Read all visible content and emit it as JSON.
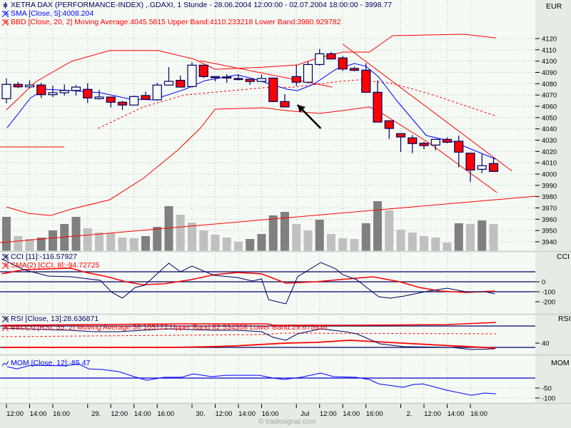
{
  "header": {
    "title": "XETRA DAX (PERFORMANCE-INDEX) ,.GDAXI, 1 Stunde - 28.06.2004 12:00:00 - 02.07.2004 18:00:00 - 3998.77",
    "sma_label": "SMA [Close, 5]:4008.204",
    "bbd_label": "BBD [Close, 20, 2] Moving Average:4045.5815 Upper Band:4110.233218 Lower Band:3980.929782",
    "currency": "EUR"
  },
  "panes": {
    "cci": {
      "name": "CCI",
      "label": "CCI [11]:-116.57927",
      "sma_label": "SMA(2) [CCI, 8]:-94.72725"
    },
    "rsi": {
      "name": "RSI",
      "label": "RSI [Close, 13]:28.636871",
      "bbd_label": "BBD(3) [RSI, 55, 2] Moving Average:56.105122 Upper Band:82.534308 Lower Band:29.675936"
    },
    "mom": {
      "name": "MOM",
      "label": "MOM [Close, 12]:-85.47"
    }
  },
  "footer": {
    "watermark": "© tradesignal.com"
  },
  "colors": {
    "up_fill": "#f5faf5",
    "down_fill": "#ff0000",
    "outline": "#000060",
    "sma": "#0000ff",
    "band": "#ff0000",
    "volume_dark": "#808080",
    "volume_light": "#c0c0c0",
    "background": "#f5faf5"
  },
  "chart_data": {
    "type": "candlestick",
    "title": "XETRA DAX (PERFORMANCE-INDEX) ,.GDAXI, 1 Stunde",
    "price_axis": {
      "min": 3940,
      "max": 4120,
      "step": 10,
      "unit": "EUR",
      "labels": [
        "4120",
        "4110",
        "4100",
        "4090",
        "4080",
        "4070",
        "4060",
        "4050",
        "4040",
        "4030",
        "4020",
        "4010",
        "4000",
        "3990",
        "3980",
        "3970",
        "3960",
        "3950",
        "3940"
      ]
    },
    "x_labels": [
      {
        "idx": 0,
        "label": "12:00"
      },
      {
        "idx": 2,
        "label": "14:00"
      },
      {
        "idx": 4,
        "label": "16:00"
      },
      {
        "idx": 7,
        "label": "29."
      },
      {
        "idx": 9,
        "label": "12:00"
      },
      {
        "idx": 11,
        "label": "14:00"
      },
      {
        "idx": 13,
        "label": "16:00"
      },
      {
        "idx": 16,
        "label": "30."
      },
      {
        "idx": 18,
        "label": "12:00"
      },
      {
        "idx": 20,
        "label": "14:00"
      },
      {
        "idx": 22,
        "label": "16:00"
      },
      {
        "idx": 25,
        "label": "Jul"
      },
      {
        "idx": 27,
        "label": "12:00"
      },
      {
        "idx": 29,
        "label": "14:00"
      },
      {
        "idx": 31,
        "label": "16:00"
      },
      {
        "idx": 34,
        "label": "2."
      },
      {
        "idx": 36,
        "label": "12:00"
      },
      {
        "idx": 38,
        "label": "14:00"
      },
      {
        "idx": 40,
        "label": "16:00"
      }
    ],
    "candles_ohlc": [
      [
        4066.7,
        4084.6,
        4062.5,
        4079.4
      ],
      [
        4079.4,
        4081.5,
        4076.2,
        4077.2
      ],
      [
        4077.2,
        4083,
        4076,
        4078.8
      ],
      [
        4078.8,
        4080.8,
        4067.4,
        4070.3
      ],
      [
        4070.3,
        4078.3,
        4068.2,
        4072
      ],
      [
        4072,
        4079.4,
        4069.5,
        4074
      ],
      [
        4074,
        4078.8,
        4069.5,
        4077
      ],
      [
        4075,
        4080.4,
        4063,
        4067.4
      ],
      [
        4066.7,
        4074.5,
        4066,
        4068.2
      ],
      [
        4068.2,
        4068.5,
        4059,
        4063.6
      ],
      [
        4063.6,
        4064.8,
        4056.8,
        4061.1
      ],
      [
        4061.1,
        4069.5,
        4061,
        4068.6
      ],
      [
        4069.5,
        4073,
        4065.7,
        4066.1
      ],
      [
        4065.7,
        4080.8,
        4065,
        4078.8
      ],
      [
        4078.8,
        4094.7,
        4078.3,
        4082.1
      ],
      [
        4083,
        4087.2,
        4076.6,
        4077
      ],
      [
        4077.5,
        4099,
        4076.5,
        4096.4
      ],
      [
        4096.4,
        4096.8,
        4085,
        4086.3
      ],
      [
        4086.3,
        4086.3,
        4082,
        4085.5
      ],
      [
        4086,
        4088.4,
        4080.8,
        4085
      ],
      [
        4084.6,
        4088.4,
        4082.8,
        4083.8
      ],
      [
        4084,
        4084.2,
        4079,
        4082
      ],
      [
        4082,
        4088,
        4082,
        4084.6
      ],
      [
        4085,
        4085,
        4063.6,
        4064.2
      ],
      [
        4064.2,
        4070.7,
        4059.4,
        4059.4
      ],
      [
        4086.3,
        4096.8,
        4077.9,
        4081.3
      ],
      [
        4081.3,
        4099.4,
        4080.2,
        4097
      ],
      [
        4097,
        4110.7,
        4096,
        4106.5
      ],
      [
        4106.5,
        4108.2,
        4101.5,
        4101.9
      ],
      [
        4102.8,
        4104.5,
        4091.4,
        4093
      ],
      [
        4093.5,
        4095,
        4091,
        4091.8
      ],
      [
        4092,
        4098,
        4072.4,
        4072.4
      ],
      [
        4072.4,
        4083,
        4046,
        4046
      ],
      [
        4047.2,
        4047.2,
        4031,
        4040.4
      ],
      [
        4035.8,
        4035.8,
        4019.4,
        4032.8
      ],
      [
        4032,
        4034.5,
        4018.5,
        4027
      ],
      [
        4027.3,
        4028.6,
        4021.9,
        4025.2
      ],
      [
        4025.7,
        4030.7,
        4021,
        4030.7
      ],
      [
        4030.7,
        4032.4,
        4027.3,
        4028.2
      ],
      [
        4029,
        4034.1,
        4005.9,
        4019.4
      ],
      [
        4018.5,
        4018.5,
        3993.2,
        4003.6
      ],
      [
        4004.2,
        4017.7,
        4000.8,
        4007.4
      ],
      [
        4009.3,
        4013.9,
        4002.3,
        4002.3
      ]
    ],
    "volume_relative": [
      48,
      21,
      17,
      19,
      29,
      38,
      48,
      32,
      26,
      25,
      19,
      18,
      21,
      34,
      63,
      51,
      40,
      29,
      23,
      19,
      13,
      17,
      24,
      50,
      55,
      38,
      29,
      44,
      24,
      18,
      17,
      39,
      70,
      57,
      30,
      26,
      21,
      19,
      12,
      39,
      38,
      43,
      38
    ],
    "volume_dark": [
      1,
      0,
      0,
      1,
      1,
      1,
      1,
      0,
      0,
      0,
      0,
      0,
      1,
      1,
      1,
      0,
      0,
      0,
      0,
      0,
      0,
      1,
      1,
      1,
      1,
      0,
      0,
      1,
      0,
      0,
      0,
      1,
      1,
      0,
      0,
      0,
      0,
      0,
      0,
      1,
      0,
      1,
      0
    ],
    "sma": [
      [
        0.06,
        4041
      ],
      [
        2.1,
        4067.6
      ],
      [
        3.3,
        4075.1
      ],
      [
        5.6,
        4073.9
      ],
      [
        8.1,
        4072
      ],
      [
        10.7,
        4066.3
      ],
      [
        12.6,
        4065.7
      ],
      [
        15.4,
        4075.1
      ],
      [
        17.1,
        4082.7
      ],
      [
        19.9,
        4087.8
      ],
      [
        21.2,
        4084.6
      ],
      [
        24.2,
        4075.1
      ],
      [
        25.1,
        4073.9
      ],
      [
        26.5,
        4079.6
      ],
      [
        28.4,
        4092.8
      ],
      [
        30,
        4097.9
      ],
      [
        31,
        4095.4
      ],
      [
        32.1,
        4085.9
      ],
      [
        33.7,
        4064.4
      ],
      [
        36.2,
        4034.1
      ],
      [
        38.6,
        4028.4
      ],
      [
        40.2,
        4021.5
      ],
      [
        42.2,
        4013.2
      ]
    ],
    "bb_upper": [
      [
        0,
        4056.8
      ],
      [
        2.5,
        4081.5
      ],
      [
        5.6,
        4099.8
      ],
      [
        8.9,
        4109.3
      ],
      [
        13.1,
        4109.3
      ],
      [
        16.2,
        4101.7
      ],
      [
        18,
        4092.8
      ],
      [
        22.2,
        4094.7
      ],
      [
        25.1,
        4096.6
      ],
      [
        26.7,
        4102.3
      ],
      [
        29,
        4108
      ],
      [
        31.3,
        4108
      ],
      [
        33.3,
        4122.5
      ],
      [
        39.4,
        4123.8
      ],
      [
        42.2,
        4120.6
      ]
    ],
    "bb_mid": [
      [
        7.9,
        4040.4
      ],
      [
        11.8,
        4059.4
      ],
      [
        15.4,
        4070.1
      ],
      [
        22.2,
        4076.4
      ],
      [
        24.9,
        4077
      ],
      [
        28.2,
        4081.5
      ],
      [
        30.4,
        4083.4
      ],
      [
        33.3,
        4080.2
      ],
      [
        36.6,
        4070.7
      ],
      [
        42.1,
        4051.8
      ]
    ],
    "bb_lower": [
      [
        0,
        3970.9
      ],
      [
        1.9,
        3965.2
      ],
      [
        3.8,
        3963.3
      ],
      [
        5.6,
        3969
      ],
      [
        8.9,
        3977.2
      ],
      [
        11.8,
        3996.2
      ],
      [
        14.8,
        4021.5
      ],
      [
        16.7,
        4040.4
      ],
      [
        18,
        4057.5
      ],
      [
        22.2,
        4058.7
      ],
      [
        24.1,
        4056.2
      ],
      [
        27,
        4053.7
      ],
      [
        29,
        4056.2
      ],
      [
        31.3,
        4059.4
      ],
      [
        32.5,
        4053
      ],
      [
        36.4,
        4027.8
      ],
      [
        42.3,
        3983.6
      ]
    ],
    "trendlines": [
      [
        [
          16.7,
          4100.4
        ],
        [
          28.1,
          4077
        ]
      ],
      [
        [
          -0.55,
          3939.3
        ],
        [
          45.7,
          3980.4
        ]
      ],
      [
        [
          -0.55,
          4024
        ],
        [
          5,
          4024
        ]
      ],
      [
        [
          29,
          4115
        ],
        [
          43.6,
          4002.5
        ]
      ]
    ],
    "arrow": [
      [
        27.1,
        4040.4
      ],
      [
        25.1,
        4061.3
      ]
    ],
    "cci": {
      "levels": [
        100,
        0,
        -100
      ],
      "tick_labels": [
        "0",
        "-100",
        "-200"
      ],
      "cci": [
        [
          -0.4,
          229
        ],
        [
          1.5,
          121
        ],
        [
          3.6,
          57
        ],
        [
          5.6,
          50
        ],
        [
          8.1,
          14
        ],
        [
          9.1,
          -107
        ],
        [
          10,
          -164
        ],
        [
          11.1,
          -57
        ],
        [
          11.9,
          -36
        ],
        [
          14,
          186
        ],
        [
          15,
          100
        ],
        [
          16,
          157
        ],
        [
          17.9,
          64
        ],
        [
          19.9,
          43
        ],
        [
          21.2,
          7
        ],
        [
          22,
          29
        ],
        [
          22.6,
          -179
        ],
        [
          24.1,
          -221
        ],
        [
          25.1,
          50
        ],
        [
          27.1,
          193
        ],
        [
          28.4,
          129
        ],
        [
          29,
          71
        ],
        [
          30.2,
          21
        ],
        [
          32.1,
          -150
        ],
        [
          33.1,
          -164
        ],
        [
          34.3,
          -143
        ],
        [
          36.4,
          -93
        ],
        [
          38,
          -64
        ],
        [
          39.6,
          -100
        ],
        [
          41.3,
          -100
        ],
        [
          42.1,
          -121
        ]
      ],
      "sma": [
        [
          -0.4,
          79
        ],
        [
          1.5,
          121
        ],
        [
          3.6,
          129
        ],
        [
          5.6,
          136
        ],
        [
          6.6,
          100
        ],
        [
          8.7,
          50
        ],
        [
          10.3,
          0
        ],
        [
          11.7,
          -29
        ],
        [
          13.6,
          -21
        ],
        [
          15.9,
          21
        ],
        [
          17.9,
          71
        ],
        [
          19.9,
          93
        ],
        [
          22,
          79
        ],
        [
          24.1,
          -14
        ],
        [
          26.7,
          0
        ],
        [
          28.6,
          21
        ],
        [
          31.6,
          50
        ],
        [
          33.9,
          0
        ],
        [
          35.6,
          -57
        ],
        [
          37.4,
          -93
        ],
        [
          39.6,
          -107
        ],
        [
          42.1,
          -93
        ]
      ]
    },
    "rsi": {
      "levels": [
        80,
        30
      ],
      "tick_labels": [
        "40"
      ],
      "rsi": [
        [
          -0.4,
          75
        ],
        [
          5.4,
          70
        ],
        [
          7.6,
          66.7
        ],
        [
          9.7,
          66.7
        ],
        [
          11.8,
          70
        ],
        [
          13.8,
          73.3
        ],
        [
          15.9,
          71.7
        ],
        [
          17.9,
          70
        ],
        [
          19.9,
          70
        ],
        [
          22,
          66.7
        ],
        [
          23,
          53.3
        ],
        [
          24.1,
          46.7
        ],
        [
          25.1,
          61.7
        ],
        [
          27.1,
          73.3
        ],
        [
          29.2,
          66.7
        ],
        [
          30.2,
          61.7
        ],
        [
          32.2,
          38.3
        ],
        [
          34.3,
          31.7
        ],
        [
          38.4,
          30
        ],
        [
          40.1,
          25
        ],
        [
          42.1,
          26.7
        ]
      ],
      "upper": [
        [
          -0.4,
          81.7
        ],
        [
          15.5,
          85
        ],
        [
          22.5,
          85
        ],
        [
          23,
          81.7
        ],
        [
          30,
          81.7
        ],
        [
          38,
          83.3
        ],
        [
          42.2,
          88.3
        ]
      ],
      "mid": [
        [
          -0.4,
          55
        ],
        [
          22,
          60
        ],
        [
          24,
          63.3
        ],
        [
          42.2,
          61.7
        ]
      ],
      "lower": [
        [
          -0.4,
          30
        ],
        [
          14.5,
          30
        ],
        [
          17.5,
          31.7
        ],
        [
          19.6,
          33.3
        ],
        [
          24.1,
          40
        ],
        [
          26.7,
          41.7
        ],
        [
          29.6,
          46.7
        ],
        [
          36.4,
          36.7
        ],
        [
          42.2,
          28.3
        ]
      ]
    },
    "mom": {
      "levels": [
        0
      ],
      "tick_labels": [
        "-50",
        "-100"
      ],
      "mom": [
        [
          0.06,
          57
        ],
        [
          0.9,
          46
        ],
        [
          2.1,
          64
        ],
        [
          5,
          61
        ],
        [
          6.2,
          71
        ],
        [
          7.1,
          46
        ],
        [
          8.3,
          43
        ],
        [
          9.7,
          32
        ],
        [
          11,
          7
        ],
        [
          12.1,
          -11
        ],
        [
          13.6,
          4
        ],
        [
          15.1,
          4
        ],
        [
          16.1,
          21
        ],
        [
          17.7,
          7
        ],
        [
          18.9,
          14
        ],
        [
          21.8,
          14
        ],
        [
          23,
          0
        ],
        [
          23.9,
          -7
        ],
        [
          25.4,
          4
        ],
        [
          27.1,
          25
        ],
        [
          28.2,
          7
        ],
        [
          30.1,
          4
        ],
        [
          31.3,
          -7
        ],
        [
          32.1,
          -29
        ],
        [
          34.2,
          -46
        ],
        [
          35.1,
          -32
        ],
        [
          35.9,
          -29
        ],
        [
          38,
          -61
        ],
        [
          40.1,
          -86
        ],
        [
          41.2,
          -75
        ],
        [
          42.2,
          -79
        ]
      ]
    }
  }
}
